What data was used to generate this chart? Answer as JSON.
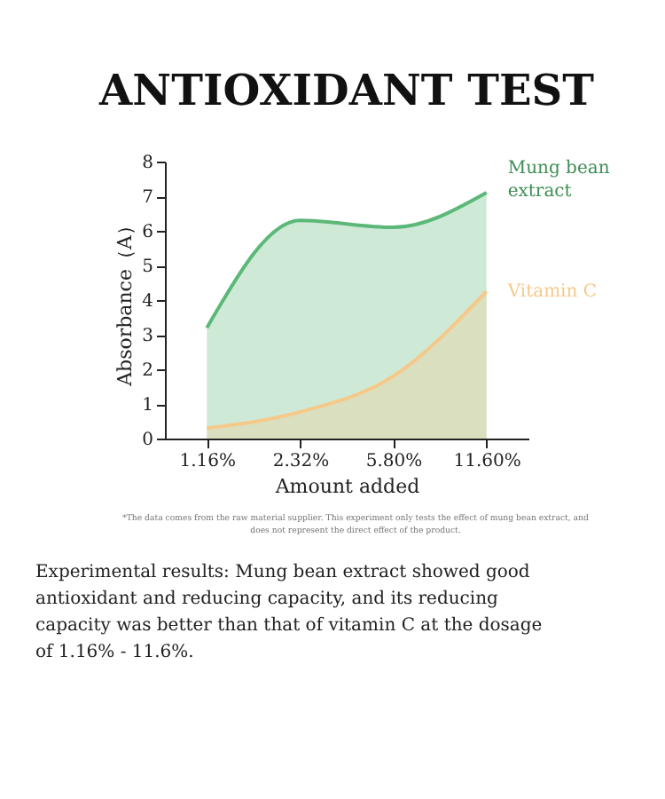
{
  "chart_data": {
    "type": "area",
    "title": "ANTIOXIDANT TEST",
    "xlabel": "Amount added",
    "ylabel": "Absorbance（A）",
    "categories": [
      "1.16%",
      "2.32%",
      "5.80%",
      "11.60%"
    ],
    "ylim": [
      0,
      8
    ],
    "yticks": [
      0,
      1,
      2,
      3,
      4,
      5,
      6,
      7,
      8
    ],
    "series": [
      {
        "name": "Mung bean extract",
        "color": "#5cb878",
        "values": [
          3.2,
          6.3,
          6.1,
          7.1
        ]
      },
      {
        "name": "Vitamin C",
        "color": "#f5c98a",
        "values": [
          0.3,
          0.77,
          1.8,
          4.25
        ]
      }
    ],
    "annotations": [
      "*The data comes from the raw material supplier. This experiment only tests the effect of mung bean extract, and does not represent the direct effect of the product.",
      "Experimental results: Mung bean extract showed good antioxidant and reducing capacity, and its reducing capacity was better than that of vitamin C at the dosage of 1.16% - 11.6%."
    ]
  }
}
